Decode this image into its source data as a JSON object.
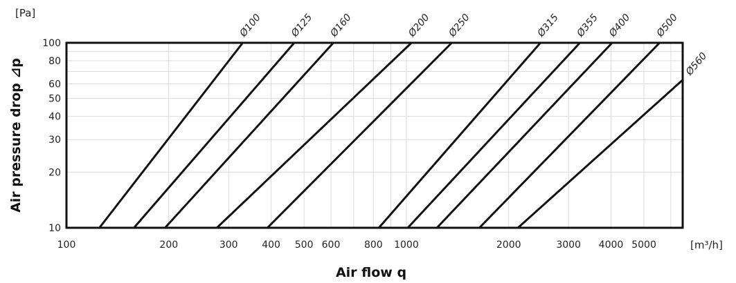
{
  "chart_data": {
    "type": "line",
    "title": "",
    "xlabel": "Air flow q",
    "ylabel": "Air pressure drop ⊿p",
    "x_unit": "[m³/h]",
    "y_unit": "[Pa]",
    "x_scale": "log",
    "y_scale": "log",
    "xlim": [
      100,
      6500
    ],
    "ylim": [
      10,
      100
    ],
    "grid": true,
    "x_ticks": [
      100,
      200,
      300,
      400,
      500,
      600,
      800,
      1000,
      2000,
      3000,
      4000,
      5000
    ],
    "x_tick_labels": [
      "100",
      "200",
      "300",
      "400",
      "500",
      "600",
      "800",
      "1000",
      "2000",
      "3000",
      "4000",
      "5000"
    ],
    "y_ticks": [
      10,
      20,
      30,
      40,
      50,
      60,
      80,
      100
    ],
    "y_tick_labels": [
      "10",
      "20",
      "30",
      "40",
      "50",
      "60",
      "80",
      "100"
    ],
    "series": [
      {
        "name": "Ø100",
        "x": [
          125,
          330
        ],
        "y": [
          10,
          100
        ]
      },
      {
        "name": "Ø125",
        "x": [
          158,
          468
        ],
        "y": [
          10,
          100
        ]
      },
      {
        "name": "Ø160",
        "x": [
          195,
          610
        ],
        "y": [
          10,
          100
        ]
      },
      {
        "name": "Ø200",
        "x": [
          277,
          1035
        ],
        "y": [
          10,
          100
        ]
      },
      {
        "name": "Ø250",
        "x": [
          390,
          1360
        ],
        "y": [
          10,
          100
        ]
      },
      {
        "name": "Ø315",
        "x": [
          830,
          2480
        ],
        "y": [
          10,
          100
        ]
      },
      {
        "name": "Ø355",
        "x": [
          1010,
          3240
        ],
        "y": [
          10,
          100
        ]
      },
      {
        "name": "Ø400",
        "x": [
          1230,
          4030
        ],
        "y": [
          10,
          100
        ]
      },
      {
        "name": "Ø500",
        "x": [
          1640,
          5560
        ],
        "y": [
          10,
          100
        ]
      },
      {
        "name": "Ø560",
        "x": [
          2130,
          6500
        ],
        "y": [
          10,
          63
        ]
      }
    ]
  }
}
